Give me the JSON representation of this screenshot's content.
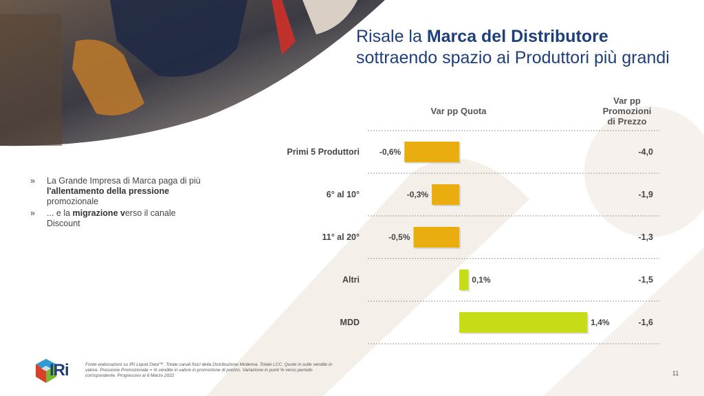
{
  "title": {
    "line1_pre": "Risale la ",
    "line1_bold": "Marca del Distributore",
    "line2": "sottraendo spazio ai Produttori più grandi"
  },
  "bullets": [
    {
      "mark": "»",
      "pre": "La Grande Impresa di Marca paga di più ",
      "bold": "l'allentamento della pressione",
      "post": " promozionale"
    },
    {
      "mark": "»",
      "pre": "... e la ",
      "bold": "migrazione v",
      "post": "erso il canale Discount"
    }
  ],
  "footnote": "Fonte elaborazioni su IRI Liquid Data™. Totale canali fisici della Distribuzione Moderna. Totale LCC. Quote in sulle vendite in valore. Pressione Promozionale = % vendite in valore in promozione di prezzo. Variazione in punti % verso periodo corrispondente. Progressivo al 6 Marzo 2022",
  "page_number": "11",
  "logo": {
    "text": "IRi"
  },
  "colors": {
    "title": "#1e3f7a",
    "bar_negative": "#e9ad0f",
    "bar_positive": "#c5dc16",
    "divider": "#9a9a9a",
    "bg_shape": "#f4efeb"
  },
  "chart_data": {
    "type": "bar",
    "orientation": "horizontal",
    "column_headers": {
      "quota": "Var pp Quota",
      "promo_line1": "Var pp",
      "promo_line2": "Promozioni",
      "promo_line3": "di Prezzo"
    },
    "categories": [
      "Primi 5 Produttori",
      "6° al 10°",
      "11° al 20°",
      "Altri",
      "MDD"
    ],
    "series": [
      {
        "name": "Var pp Quota",
        "values": [
          -0.6,
          -0.3,
          -0.5,
          0.1,
          1.4
        ],
        "labels": [
          "-0,6%",
          "-0,3%",
          "-0,5%",
          "0,1%",
          "1,4%"
        ]
      }
    ],
    "promo_values": [
      -4.0,
      -1.9,
      -1.3,
      -1.5,
      -1.6
    ],
    "promo_labels": [
      "-4,0",
      "-1,9",
      "-1,3",
      "-1,5",
      "-1,6"
    ]
  }
}
